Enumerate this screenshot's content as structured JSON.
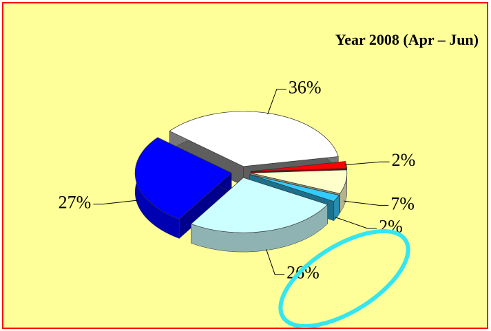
{
  "chart_data": {
    "type": "pie3d",
    "title": "Year 2008 (Apr – Jun)",
    "values": [
      36,
      2,
      7,
      2,
      26,
      27
    ],
    "value_labels": [
      "36%",
      "2%",
      "7%",
      "2%",
      "26%",
      "27%"
    ],
    "colors": [
      "#ffffff",
      "#ff0000",
      "#ffffcc",
      "#33ccff",
      "#ccffff",
      "#0000ff"
    ]
  }
}
